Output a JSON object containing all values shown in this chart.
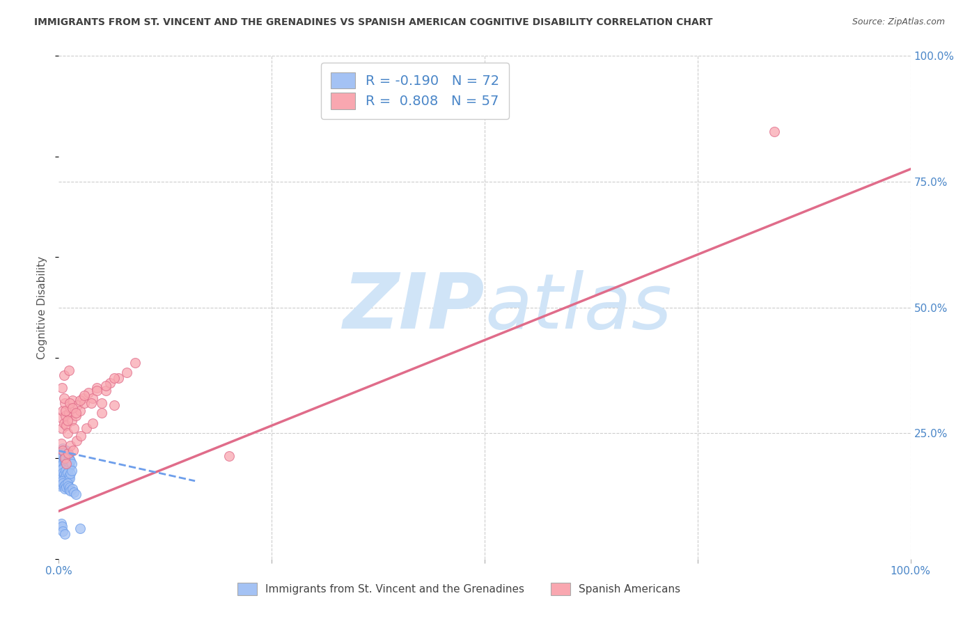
{
  "title": "IMMIGRANTS FROM ST. VINCENT AND THE GRENADINES VS SPANISH AMERICAN COGNITIVE DISABILITY CORRELATION CHART",
  "source": "Source: ZipAtlas.com",
  "ylabel": "Cognitive Disability",
  "xlabel": "",
  "legend_label_blue": "Immigrants from St. Vincent and the Grenadines",
  "legend_label_pink": "Spanish Americans",
  "R_blue": -0.19,
  "N_blue": 72,
  "R_pink": 0.808,
  "N_pink": 57,
  "color_blue": "#a4c2f4",
  "color_pink": "#f9a7b0",
  "color_blue_line": "#6d9eeb",
  "color_pink_line": "#e06c8a",
  "axis_color": "#4a86c8",
  "title_color": "#404040",
  "watermark_zip": "ZIP",
  "watermark_atlas": "atlas",
  "watermark_color": "#d0e4f7",
  "background_color": "#ffffff",
  "grid_color": "#cccccc",
  "xlim": [
    0.0,
    1.0
  ],
  "ylim": [
    0.0,
    1.0
  ],
  "blue_scatter_x": [
    0.001,
    0.001,
    0.002,
    0.002,
    0.002,
    0.003,
    0.003,
    0.003,
    0.003,
    0.004,
    0.004,
    0.004,
    0.005,
    0.005,
    0.005,
    0.006,
    0.006,
    0.006,
    0.007,
    0.007,
    0.007,
    0.008,
    0.008,
    0.009,
    0.009,
    0.01,
    0.01,
    0.011,
    0.011,
    0.012,
    0.012,
    0.013,
    0.013,
    0.014,
    0.015,
    0.001,
    0.002,
    0.003,
    0.004,
    0.005,
    0.006,
    0.007,
    0.008,
    0.009,
    0.01,
    0.011,
    0.012,
    0.013,
    0.014,
    0.015,
    0.001,
    0.002,
    0.003,
    0.004,
    0.005,
    0.006,
    0.007,
    0.008,
    0.009,
    0.01,
    0.011,
    0.012,
    0.013,
    0.014,
    0.016,
    0.018,
    0.02,
    0.025,
    0.003,
    0.004,
    0.005,
    0.007
  ],
  "blue_scatter_y": [
    0.195,
    0.18,
    0.21,
    0.19,
    0.175,
    0.205,
    0.195,
    0.185,
    0.17,
    0.215,
    0.2,
    0.185,
    0.22,
    0.205,
    0.19,
    0.215,
    0.2,
    0.185,
    0.21,
    0.195,
    0.18,
    0.205,
    0.19,
    0.215,
    0.2,
    0.21,
    0.195,
    0.205,
    0.188,
    0.2,
    0.185,
    0.198,
    0.182,
    0.195,
    0.19,
    0.16,
    0.175,
    0.165,
    0.178,
    0.172,
    0.168,
    0.162,
    0.175,
    0.168,
    0.172,
    0.158,
    0.165,
    0.16,
    0.17,
    0.175,
    0.145,
    0.152,
    0.148,
    0.155,
    0.15,
    0.145,
    0.14,
    0.148,
    0.142,
    0.15,
    0.145,
    0.138,
    0.142,
    0.135,
    0.14,
    0.132,
    0.128,
    0.06,
    0.07,
    0.065,
    0.055,
    0.05
  ],
  "pink_scatter_x": [
    0.003,
    0.004,
    0.005,
    0.006,
    0.007,
    0.008,
    0.009,
    0.01,
    0.012,
    0.014,
    0.015,
    0.016,
    0.018,
    0.02,
    0.022,
    0.025,
    0.028,
    0.03,
    0.035,
    0.04,
    0.045,
    0.05,
    0.055,
    0.06,
    0.07,
    0.08,
    0.09,
    0.004,
    0.006,
    0.008,
    0.01,
    0.013,
    0.016,
    0.02,
    0.025,
    0.03,
    0.038,
    0.045,
    0.055,
    0.065,
    0.003,
    0.005,
    0.007,
    0.009,
    0.011,
    0.014,
    0.017,
    0.021,
    0.026,
    0.032,
    0.04,
    0.05,
    0.065,
    0.2,
    0.84,
    0.006,
    0.012
  ],
  "pink_scatter_y": [
    0.28,
    0.26,
    0.295,
    0.27,
    0.31,
    0.285,
    0.265,
    0.25,
    0.29,
    0.3,
    0.275,
    0.315,
    0.26,
    0.285,
    0.305,
    0.295,
    0.32,
    0.31,
    0.33,
    0.32,
    0.34,
    0.31,
    0.335,
    0.35,
    0.36,
    0.37,
    0.39,
    0.34,
    0.32,
    0.295,
    0.275,
    0.31,
    0.3,
    0.29,
    0.315,
    0.325,
    0.31,
    0.335,
    0.345,
    0.36,
    0.23,
    0.215,
    0.2,
    0.19,
    0.21,
    0.225,
    0.215,
    0.235,
    0.245,
    0.26,
    0.27,
    0.29,
    0.305,
    0.205,
    0.85,
    0.365,
    0.375
  ],
  "pink_trend_x0": 0.0,
  "pink_trend_y0": 0.095,
  "pink_trend_x1": 1.0,
  "pink_trend_y1": 0.775,
  "blue_trend_x0": 0.0,
  "blue_trend_y0": 0.215,
  "blue_trend_x1": 0.16,
  "blue_trend_y1": 0.155
}
